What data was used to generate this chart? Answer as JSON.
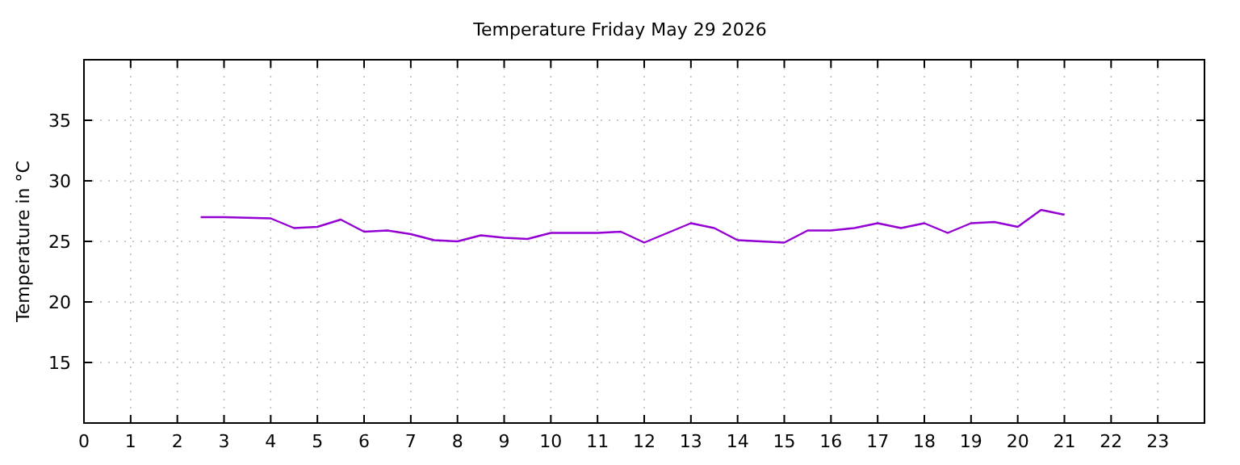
{
  "chart_data": {
    "type": "line",
    "title": "Temperature Friday May 29 2026",
    "ylabel": "Temperature in °C",
    "x": [
      2.5,
      3,
      4,
      4.5,
      5,
      5.5,
      6,
      6.5,
      7,
      7.5,
      8,
      8.5,
      9,
      9.5,
      10,
      10.5,
      11,
      11.5,
      12,
      13,
      13.5,
      14,
      15,
      15.5,
      16,
      16.5,
      17,
      17.5,
      18,
      18.5,
      19,
      19.5,
      20,
      20.5,
      21
    ],
    "series": [
      {
        "color": "#9400d3",
        "values": [
          27.0,
          27.0,
          26.9,
          26.1,
          26.2,
          26.8,
          25.8,
          25.9,
          25.6,
          25.1,
          25.0,
          25.5,
          25.3,
          25.2,
          25.7,
          25.7,
          25.7,
          25.8,
          24.9,
          26.5,
          26.1,
          25.1,
          24.9,
          25.9,
          25.9,
          26.1,
          26.5,
          26.1,
          26.5,
          25.7,
          26.5,
          26.6,
          26.2,
          27.6,
          27.2
        ]
      }
    ],
    "xlim": [
      0,
      24
    ],
    "xticks": [
      0,
      1,
      2,
      3,
      4,
      5,
      6,
      7,
      8,
      9,
      10,
      11,
      12,
      13,
      14,
      15,
      16,
      17,
      18,
      19,
      20,
      21,
      22,
      23
    ],
    "ylim": [
      10,
      40
    ],
    "yticks": [
      15,
      20,
      25,
      30,
      35
    ],
    "grid": true,
    "marker": "none",
    "line_style": "solid"
  }
}
